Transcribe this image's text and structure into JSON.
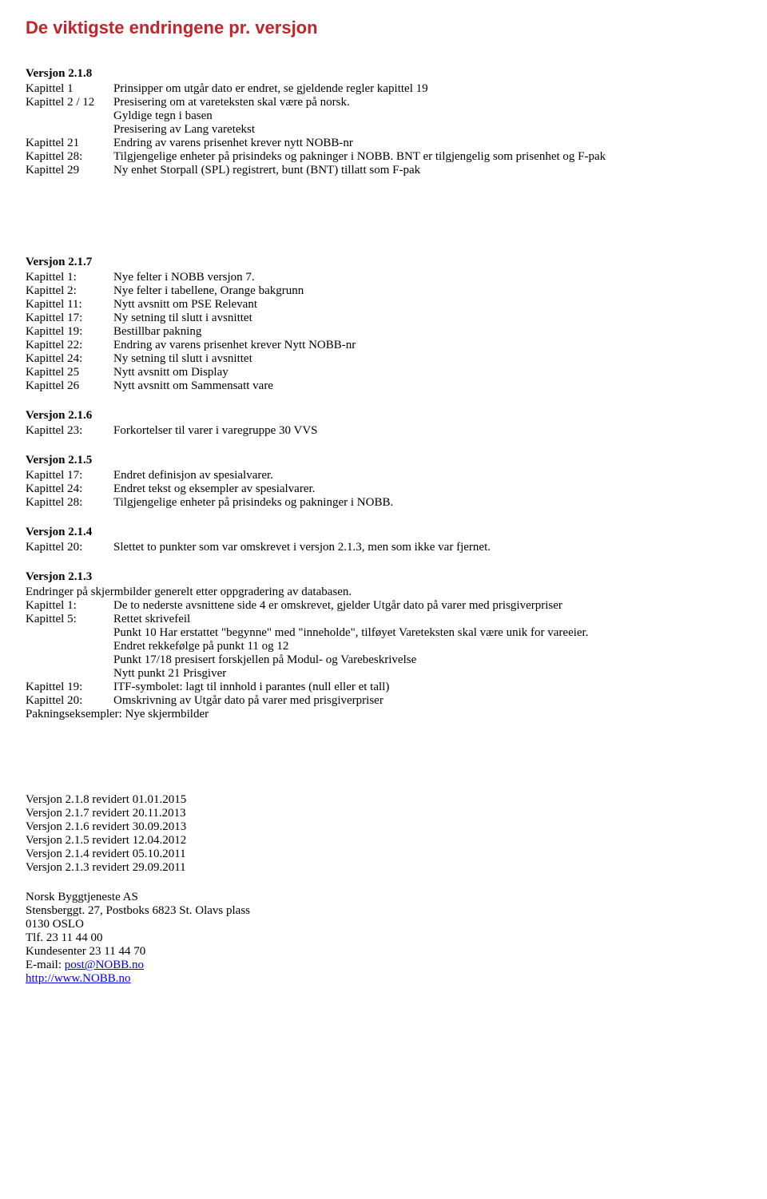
{
  "title": "De viktigste endringene pr. versjon",
  "v218": {
    "header": "Versjon 2.1.8",
    "rows": [
      {
        "label": "Kapittel 1",
        "val": "Prinsipper om utgår dato er endret, se gjeldende regler kapittel 19"
      },
      {
        "label": "Kapittel 2 / 12",
        "val": "Presisering om at vareteksten skal være på norsk."
      },
      {
        "label": "",
        "val": "Gyldige tegn i basen"
      },
      {
        "label": "",
        "val": "Presisering av Lang varetekst"
      },
      {
        "label": "Kapittel 21",
        "val": "Endring av varens prisenhet krever nytt NOBB-nr"
      },
      {
        "label": "Kapittel 28:",
        "val": "Tilgjengelige enheter på prisindeks og pakninger i NOBB. BNT er tilgjengelig som prisenhet og F-pak"
      },
      {
        "label": "Kapittel 29",
        "val": "Ny enhet Storpall (SPL) registrert, bunt (BNT) tillatt som F-pak"
      }
    ]
  },
  "v217": {
    "header": "Versjon 2.1.7",
    "rows": [
      {
        "label": "Kapittel 1:",
        "val": "Nye felter i NOBB versjon 7."
      },
      {
        "label": "Kapittel 2:",
        "val": "Nye felter i tabellene, Orange bakgrunn"
      },
      {
        "label": "Kapittel 11:",
        "val": "Nytt avsnitt om PSE Relevant"
      },
      {
        "label": "Kapittel 17:",
        "val": "Ny setning til slutt i avsnittet"
      },
      {
        "label": "Kapittel 19:",
        "val": "Bestillbar pakning"
      },
      {
        "label": "Kapittel 22:",
        "val": "Endring av varens prisenhet krever Nytt NOBB-nr"
      },
      {
        "label": "Kapittel 24:",
        "val": "Ny setning til slutt i avsnittet"
      },
      {
        "label": "Kapittel 25",
        "val": "Nytt avsnitt om Display"
      },
      {
        "label": "Kapittel 26",
        "val": "Nytt avsnitt om Sammensatt vare"
      }
    ]
  },
  "v216": {
    "header": "Versjon 2.1.6",
    "rows": [
      {
        "label": "Kapittel 23:",
        "val": "Forkortelser til varer i varegruppe 30 VVS"
      }
    ]
  },
  "v215": {
    "header": "Versjon 2.1.5",
    "rows": [
      {
        "label": "Kapittel 17:",
        "val": "Endret definisjon av spesialvarer."
      },
      {
        "label": "Kapittel 24:",
        "val": "Endret tekst og eksempler av spesialvarer."
      },
      {
        "label": "Kapittel 28:",
        "val": "Tilgjengelige enheter på prisindeks og pakninger i NOBB."
      }
    ]
  },
  "v214": {
    "header": "Versjon 2.1.4",
    "rows": [
      {
        "label": "Kapittel 20:",
        "val": "Slettet to punkter som var omskrevet i versjon 2.1.3, men som ikke var fjernet."
      }
    ]
  },
  "v213": {
    "header": "Versjon 2.1.3",
    "intro": "Endringer på skjermbilder generelt etter oppgradering av databasen.",
    "rows": [
      {
        "label": "Kapittel 1:",
        "val": "De to nederste avsnittene side 4 er omskrevet, gjelder Utgår dato på varer med prisgiverpriser"
      },
      {
        "label": "Kapittel 5:",
        "val": "Rettet skrivefeil"
      },
      {
        "label": "",
        "val": "Punkt 10 Har erstattet \"begynne\" med \"inneholde\", tilføyet Vareteksten skal være unik for vareeier."
      },
      {
        "label": "",
        "val": "Endret rekkefølge på punkt 11 og 12"
      },
      {
        "label": "",
        "val": "Punkt 17/18 presisert forskjellen på Modul- og Varebeskrivelse"
      },
      {
        "label": "",
        "val": "Nytt punkt 21 Prisgiver"
      },
      {
        "label": "Kapittel 19:",
        "val": "ITF-symbolet: lagt til innhold i parantes (null eller et tall)"
      },
      {
        "label": "Kapittel 20:",
        "val": "Omskrivning av Utgår dato på varer med prisgiverpriser"
      }
    ],
    "outro": "Pakningseksempler: Nye skjermbilder"
  },
  "revisions": [
    "Versjon 2.1.8 revidert 01.01.2015",
    "Versjon 2.1.7 revidert 20.11.2013",
    "Versjon 2.1.6 revidert 30.09.2013",
    "Versjon 2.1.5 revidert 12.04.2012",
    "Versjon 2.1.4 revidert 05.10.2011",
    "Versjon 2.1.3 revidert 29.09.2011"
  ],
  "contact": {
    "company": "Norsk Byggtjeneste AS",
    "address": "Stensberggt. 27, Postboks 6823 St. Olavs plass",
    "postal": "0130 OSLO",
    "tlf": "Tlf. 23 11 44 00",
    "kundesenter": "Kundesenter 23 11 44 70",
    "email_label": "E-mail: ",
    "email_link": "post@NOBB.no",
    "web_link": "http://www.NOBB.no"
  }
}
